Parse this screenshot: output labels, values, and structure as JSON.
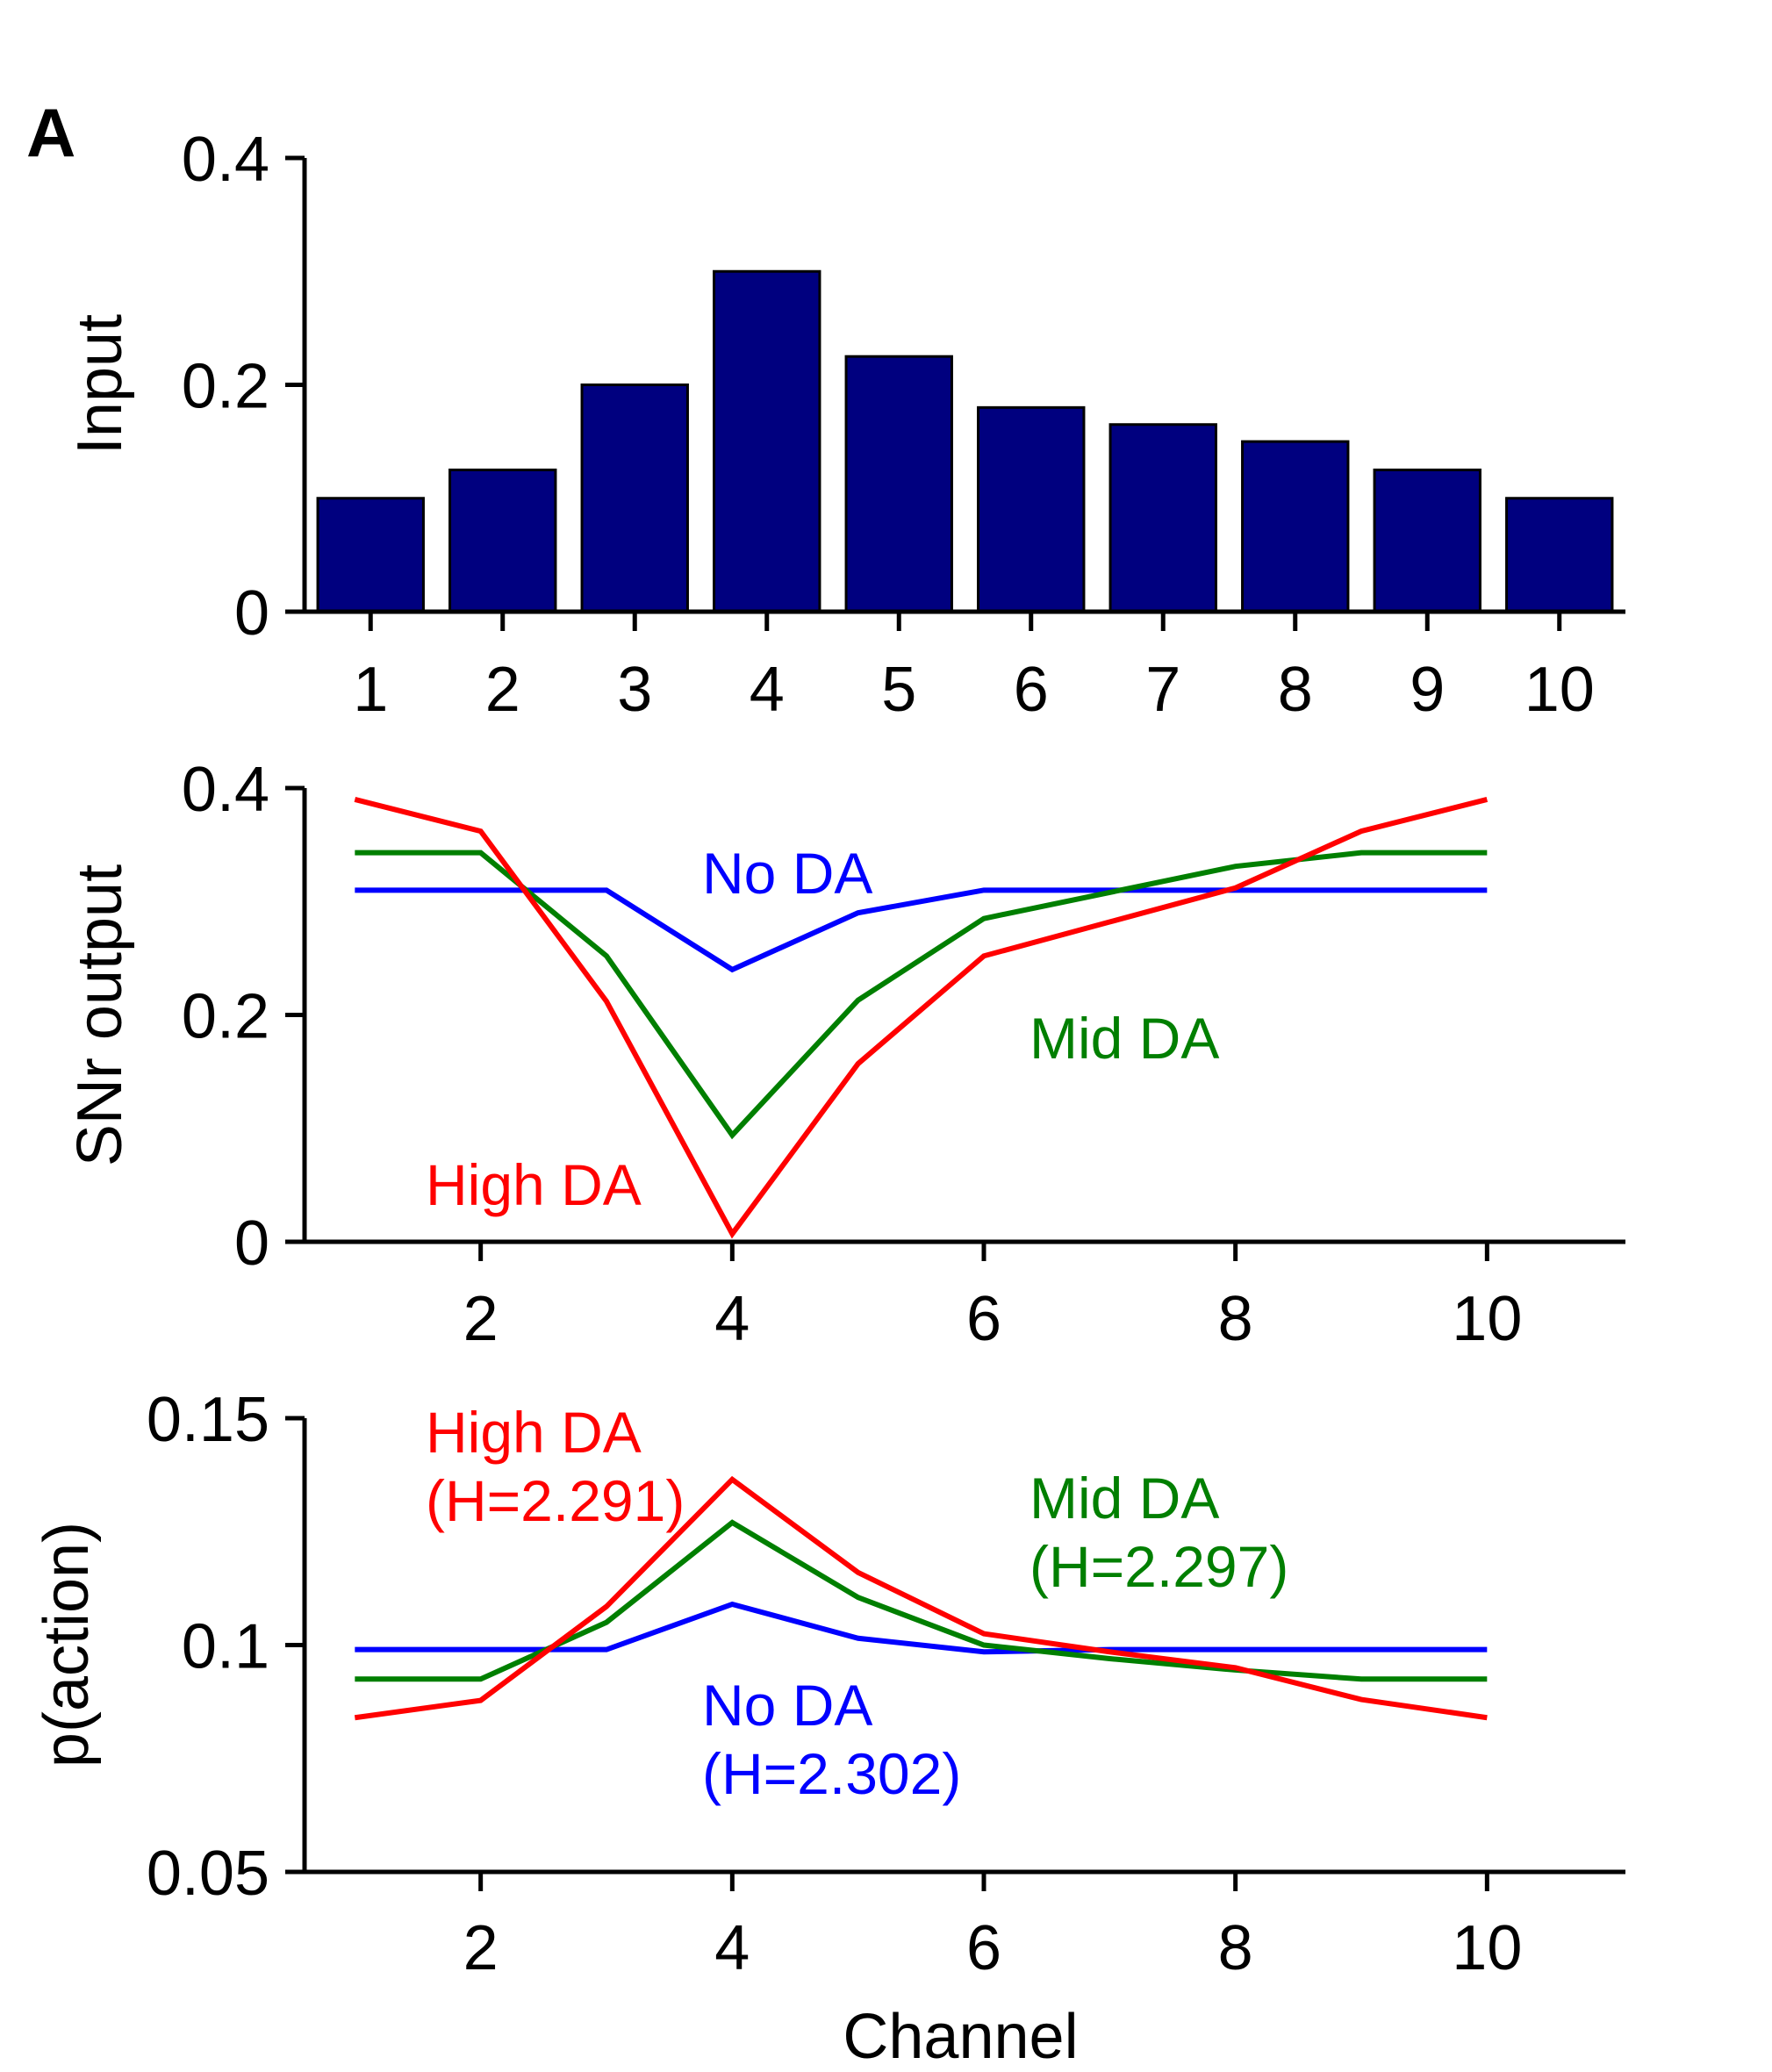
{
  "panel_label": "A",
  "colors": {
    "bar": "#00007f",
    "No DA": "#0000ff",
    "Mid DA": "#007f00",
    "High DA": "#ff0000"
  },
  "chart_data": [
    {
      "type": "bar",
      "ylabel": "Input",
      "xlabel": "",
      "categories": [
        "1",
        "2",
        "3",
        "4",
        "5",
        "6",
        "7",
        "8",
        "9",
        "10"
      ],
      "values": [
        0.1,
        0.125,
        0.2,
        0.3,
        0.225,
        0.18,
        0.165,
        0.15,
        0.125,
        0.1
      ],
      "ylim": [
        0,
        0.4
      ],
      "yticks": [
        "0",
        "0.2",
        "0.4"
      ],
      "xticks": [
        "1",
        "2",
        "3",
        "4",
        "5",
        "6",
        "7",
        "8",
        "9",
        "10"
      ],
      "grid": false
    },
    {
      "type": "line",
      "ylabel": "SNr output",
      "xlabel": "",
      "x": [
        1,
        2,
        3,
        4,
        5,
        6,
        7,
        8,
        9,
        10
      ],
      "xlim": [
        0.6,
        11.1
      ],
      "ylim": [
        0,
        0.4
      ],
      "yticks": [
        "0",
        "0.2",
        "0.4"
      ],
      "xticks": [
        "2",
        "4",
        "6",
        "8",
        "10"
      ],
      "grid": false,
      "series": [
        {
          "name": "No DA",
          "values": [
            0.31,
            0.31,
            0.31,
            0.24,
            0.29,
            0.31,
            0.31,
            0.31,
            0.31,
            0.31
          ]
        },
        {
          "name": "Mid DA",
          "values": [
            0.343,
            0.343,
            0.252,
            0.094,
            0.213,
            0.285,
            0.308,
            0.331,
            0.343,
            0.343
          ]
        },
        {
          "name": "High DA",
          "values": [
            0.39,
            0.362,
            0.212,
            0.007,
            0.157,
            0.252,
            0.282,
            0.312,
            0.362,
            0.39
          ]
        }
      ],
      "annotations": [
        {
          "series": "No DA",
          "lines": [
            "No DA"
          ]
        },
        {
          "series": "Mid DA",
          "lines": [
            "Mid DA"
          ]
        },
        {
          "series": "High DA",
          "lines": [
            "High DA"
          ]
        }
      ]
    },
    {
      "type": "line",
      "ylabel": "p(action)",
      "xlabel": "Channel",
      "x": [
        1,
        2,
        3,
        4,
        5,
        6,
        7,
        8,
        9,
        10
      ],
      "xlim": [
        0.6,
        11.1
      ],
      "ylim": [
        0.05,
        0.15
      ],
      "yticks": [
        "0.05",
        "0.1",
        "0.15"
      ],
      "xticks": [
        "2",
        "4",
        "6",
        "8",
        "10"
      ],
      "grid": false,
      "series": [
        {
          "name": "No DA",
          "values": [
            0.099,
            0.099,
            0.099,
            0.109,
            0.1015,
            0.0985,
            0.099,
            0.099,
            0.099,
            0.099
          ]
        },
        {
          "name": "Mid DA",
          "values": [
            0.0925,
            0.0925,
            0.105,
            0.127,
            0.1105,
            0.1,
            0.097,
            0.0945,
            0.0925,
            0.0925
          ]
        },
        {
          "name": "High DA",
          "values": [
            0.084,
            0.0878,
            0.1085,
            0.1365,
            0.116,
            0.1025,
            0.0985,
            0.095,
            0.088,
            0.084
          ]
        }
      ],
      "annotations": [
        {
          "series": "High DA",
          "lines": [
            "High DA",
            "(H=2.291)"
          ]
        },
        {
          "series": "Mid DA",
          "lines": [
            "Mid DA",
            "(H=2.297)"
          ]
        },
        {
          "series": "No DA",
          "lines": [
            "No DA",
            "(H=2.302)"
          ]
        }
      ]
    }
  ]
}
